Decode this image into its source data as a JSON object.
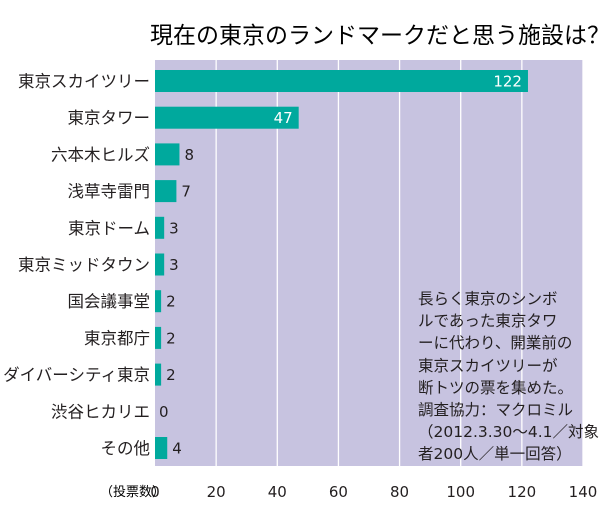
{
  "chart_data": {
    "type": "bar",
    "orientation": "horizontal",
    "title": "現在の東京のランドマークだと思う施設は？",
    "categories": [
      "東京スカイツリー",
      "東京タワー",
      "六本木ヒルズ",
      "浅草寺雷門",
      "東京ドーム",
      "東京ミッドタウン",
      "国会議事堂",
      "東京都庁",
      "ダイバーシティ東京",
      "渋谷ヒカリエ",
      "その他"
    ],
    "values": [
      122,
      47,
      8,
      7,
      3,
      3,
      2,
      2,
      2,
      0,
      4
    ],
    "xlabel": "（投票数）",
    "ylabel": "",
    "xlim": [
      0,
      140
    ],
    "xticks": [
      0,
      20,
      40,
      60,
      80,
      100,
      120,
      140
    ],
    "grid": true,
    "colors": {
      "bar": "#00a99d",
      "plot_bg": "#c7c3e0",
      "grid": "#ffffff",
      "inside_label": "#ffffff",
      "text": "#231f20"
    },
    "note_lines": [
      "長らく東京のシンボ",
      "ルであった東京タワ",
      "ーに代わり、開業前の",
      "東京スカイツリーが",
      "断トツの票を集めた。",
      "調査協力：マクロミル",
      "（2012.3.30〜4.1／対象",
      "者200人／単一回答）"
    ]
  }
}
